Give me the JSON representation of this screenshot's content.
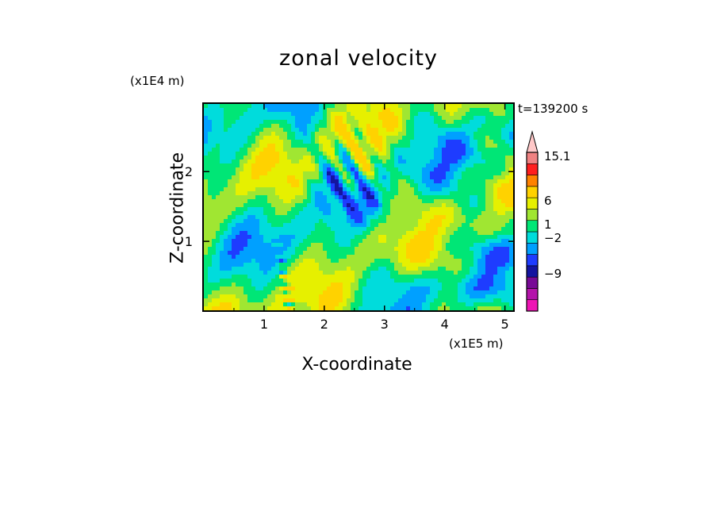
{
  "chart_data": {
    "type": "heatmap",
    "title": "zonal velocity",
    "xlabel": "X-coordinate",
    "ylabel": "Z-coordinate",
    "x_unit_label": "(x1E5 m)",
    "y_unit_label": "(x1E4 m)",
    "time_label": "t=139200 s",
    "xlim": [
      0,
      5.15
    ],
    "ylim": [
      0,
      2.97
    ],
    "x_ticks": [
      1,
      2,
      3,
      4,
      5
    ],
    "y_ticks": [
      1,
      2
    ],
    "colorbar": {
      "levels": [
        -15.1,
        -12,
        -9,
        -6,
        -3,
        -2,
        -1,
        0,
        1,
        2,
        3,
        6,
        9,
        12,
        15.1
      ],
      "colors": [
        "#ee14b4",
        "#b414aa",
        "#780a96",
        "#1414a0",
        "#1e3cff",
        "#00a0ff",
        "#00dcdc",
        "#00e676",
        "#a0e632",
        "#e6f000",
        "#ffd200",
        "#ff8200",
        "#ff1e1e",
        "#f08282",
        "#ffc8c8"
      ],
      "labeled_values": [
        "15.1",
        "6",
        "1",
        "-2",
        "-9"
      ]
    },
    "field_description_values": {
      "dominant_band_values": [
        -2,
        -1,
        0,
        1,
        2,
        3
      ],
      "min_visible": -12,
      "max_visible": 6
    }
  }
}
